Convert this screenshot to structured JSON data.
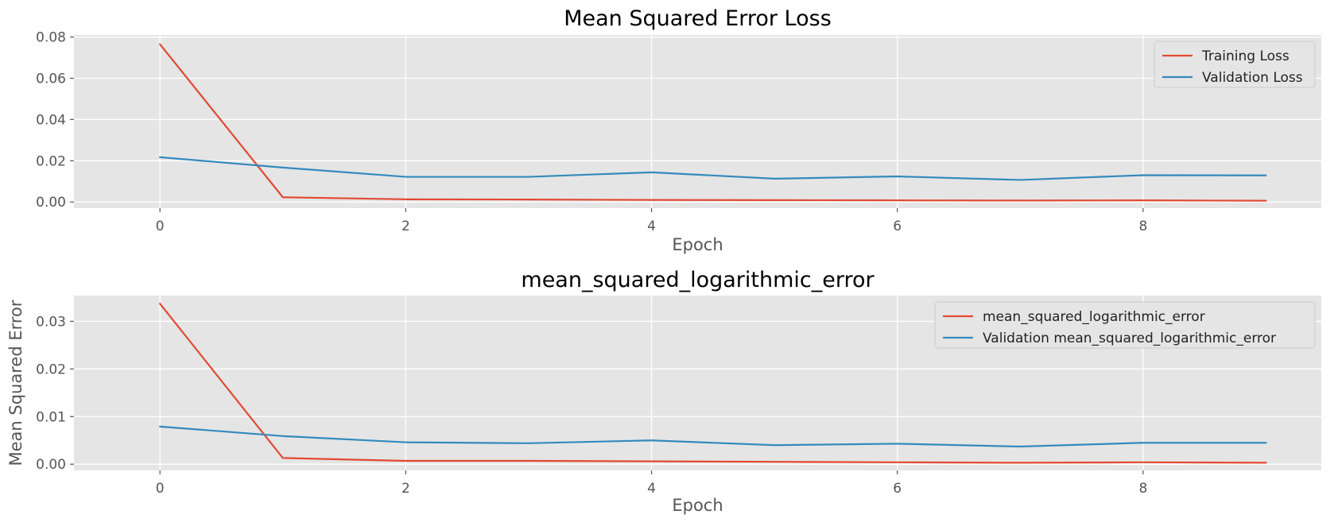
{
  "chart_data": [
    {
      "type": "line",
      "title": "Mean Squared Error Loss",
      "xlabel": "Epoch",
      "ylabel": "",
      "x": [
        0,
        1,
        2,
        3,
        4,
        5,
        6,
        7,
        8,
        9
      ],
      "xlim": [
        -0.7,
        9.45
      ],
      "ylim": [
        -0.003,
        0.081
      ],
      "xticks": [
        0,
        2,
        4,
        6,
        8
      ],
      "yticks": [
        0.0,
        0.02,
        0.04,
        0.06,
        0.08
      ],
      "ytick_labels": [
        "0.00",
        "0.02",
        "0.04",
        "0.06",
        "0.08"
      ],
      "grid": true,
      "legend_position": "top-right",
      "series": [
        {
          "name": "Training Loss",
          "color": "#E24A33",
          "values": [
            0.0765,
            0.0023,
            0.0013,
            0.0012,
            0.001,
            0.0009,
            0.0008,
            0.0007,
            0.0008,
            0.0006
          ]
        },
        {
          "name": "Validation Loss",
          "color": "#348ABD",
          "values": [
            0.0217,
            0.0167,
            0.0122,
            0.0122,
            0.0144,
            0.0113,
            0.0124,
            0.0107,
            0.013,
            0.0129
          ]
        }
      ]
    },
    {
      "type": "line",
      "title": "mean_squared_logarithmic_error",
      "xlabel": "Epoch",
      "ylabel": "Mean Squared Error",
      "x": [
        0,
        1,
        2,
        3,
        4,
        5,
        6,
        7,
        8,
        9
      ],
      "xlim": [
        -0.7,
        9.45
      ],
      "ylim": [
        -0.0013,
        0.0354
      ],
      "xticks": [
        0,
        2,
        4,
        6,
        8
      ],
      "yticks": [
        0.0,
        0.01,
        0.02,
        0.03
      ],
      "ytick_labels": [
        "0.00",
        "0.01",
        "0.02",
        "0.03"
      ],
      "grid": true,
      "legend_position": "top-right",
      "series": [
        {
          "name": "mean_squared_logarithmic_error",
          "color": "#E24A33",
          "values": [
            0.0337,
            0.0013,
            0.0007,
            0.0007,
            0.0006,
            0.0005,
            0.0004,
            0.0003,
            0.0004,
            0.0003
          ]
        },
        {
          "name": "Validation mean_squared_logarithmic_error",
          "color": "#348ABD",
          "values": [
            0.0079,
            0.0059,
            0.0046,
            0.0044,
            0.005,
            0.004,
            0.0043,
            0.0037,
            0.0045,
            0.0045
          ]
        }
      ]
    }
  ]
}
